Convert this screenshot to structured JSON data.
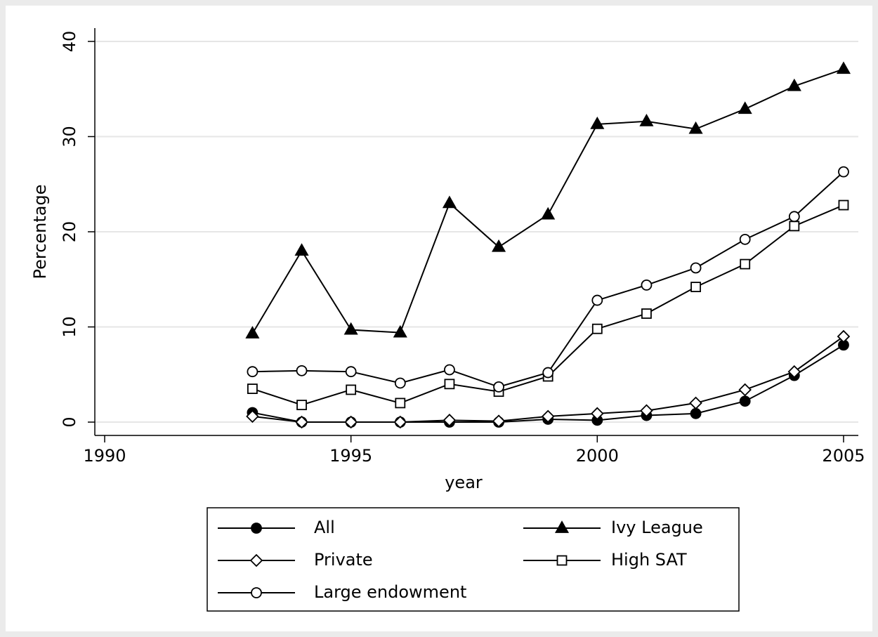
{
  "chart_data": {
    "type": "line",
    "x_label": "year",
    "y_label": "Percentage",
    "x": [
      1993,
      1994,
      1995,
      1996,
      1997,
      1998,
      1999,
      2000,
      2001,
      2002,
      2003,
      2004,
      2005
    ],
    "series": [
      {
        "name": "All",
        "color": "#000000",
        "marker": "circle-filled",
        "values": [
          1.0,
          0,
          0,
          0,
          0,
          0,
          0.3,
          0.2,
          0.7,
          0.9,
          2.2,
          4.9,
          8.1
        ]
      },
      {
        "name": "Ivy League",
        "color": "#000000",
        "marker": "triangle-filled",
        "values": [
          9.3,
          18,
          9.7,
          9.4,
          23,
          18.4,
          21.8,
          31.3,
          31.6,
          30.8,
          32.9,
          35.3,
          37.1
        ]
      },
      {
        "name": "Private",
        "color": "#000000",
        "marker": "diamond-open",
        "values": [
          0.6,
          0,
          0,
          0,
          0.2,
          0.1,
          0.6,
          0.9,
          1.2,
          2.0,
          3.4,
          5.3,
          9.0
        ]
      },
      {
        "name": "High SAT",
        "color": "#000000",
        "marker": "square-open",
        "values": [
          3.5,
          1.8,
          3.4,
          2.0,
          4.0,
          3.2,
          4.8,
          9.8,
          11.4,
          14.2,
          16.6,
          20.6,
          22.8
        ]
      },
      {
        "name": "Large endowment",
        "color": "#000000",
        "marker": "circle-open",
        "values": [
          5.3,
          5.4,
          5.3,
          4.1,
          5.5,
          3.7,
          5.2,
          12.8,
          14.4,
          16.2,
          19.2,
          21.6,
          26.3
        ]
      }
    ],
    "xlim": [
      1989.8,
      2005.3
    ],
    "xticks": [
      1990,
      1995,
      2000,
      2005
    ],
    "ylim": [
      -1.4,
      41.4
    ],
    "yticks": [
      0,
      10,
      20,
      30,
      40
    ],
    "grid": true,
    "legend": "bottom"
  }
}
